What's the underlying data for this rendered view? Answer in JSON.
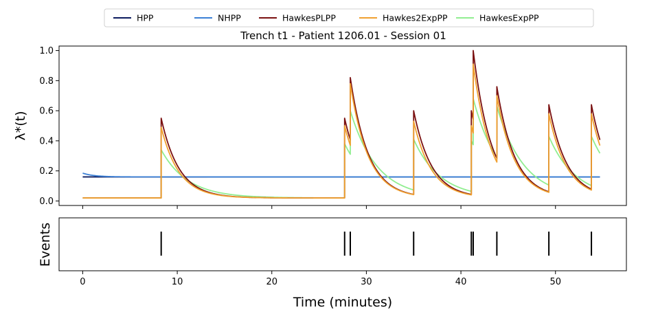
{
  "chart_data": {
    "type": "line",
    "title": "Trench t1 - Patient 1206.01 - Session 01",
    "xlabel": "Time (minutes)",
    "ylabel": "λ*(t)",
    "events_ylabel": "Events",
    "xlim": [
      -2.5,
      57.5
    ],
    "ylim": [
      -0.03,
      1.03
    ],
    "x_ticks": [
      0,
      10,
      20,
      30,
      40,
      50
    ],
    "y_ticks": [
      0.0,
      0.2,
      0.4,
      0.6,
      0.8,
      1.0
    ],
    "x_tick_labels": [
      "0",
      "10",
      "20",
      "30",
      "40",
      "50"
    ],
    "y_tick_labels": [
      "0.0",
      "0.2",
      "0.4",
      "0.6",
      "0.8",
      "1.0"
    ],
    "legend_position": "top-center",
    "x_end": 54.7,
    "events": [
      8.3,
      27.7,
      28.3,
      35.0,
      41.1,
      41.3,
      43.8,
      49.3,
      53.8
    ],
    "series": [
      {
        "name": "HPP",
        "color": "#0b1a5e",
        "kind": "constant",
        "base": 0.16
      },
      {
        "name": "NHPP",
        "color": "#3a7fd5",
        "kind": "decay_to_constant",
        "base": 0.16,
        "start": 0.185,
        "tau": 1.2
      },
      {
        "name": "HawkesPLPP",
        "color": "#7a1010",
        "kind": "hawkes",
        "base": 0.02,
        "peaks": [
          0.55,
          0.55,
          0.82,
          0.6,
          0.6,
          1.0,
          0.76,
          0.64,
          0.64
        ],
        "tau": 1.9
      },
      {
        "name": "Hawkes2ExpPP",
        "color": "#f0a030",
        "kind": "hawkes",
        "base": 0.02,
        "peaks": [
          0.49,
          0.5,
          0.78,
          0.53,
          0.5,
          0.91,
          0.7,
          0.58,
          0.58
        ],
        "tau": 1.9
      },
      {
        "name": "HawkesExpPP",
        "color": "#90ee90",
        "kind": "hawkes",
        "base": 0.02,
        "peaks": [
          0.34,
          0.38,
          0.6,
          0.41,
          0.4,
          0.68,
          0.63,
          0.43,
          0.43
        ],
        "tau": 2.8
      }
    ]
  }
}
